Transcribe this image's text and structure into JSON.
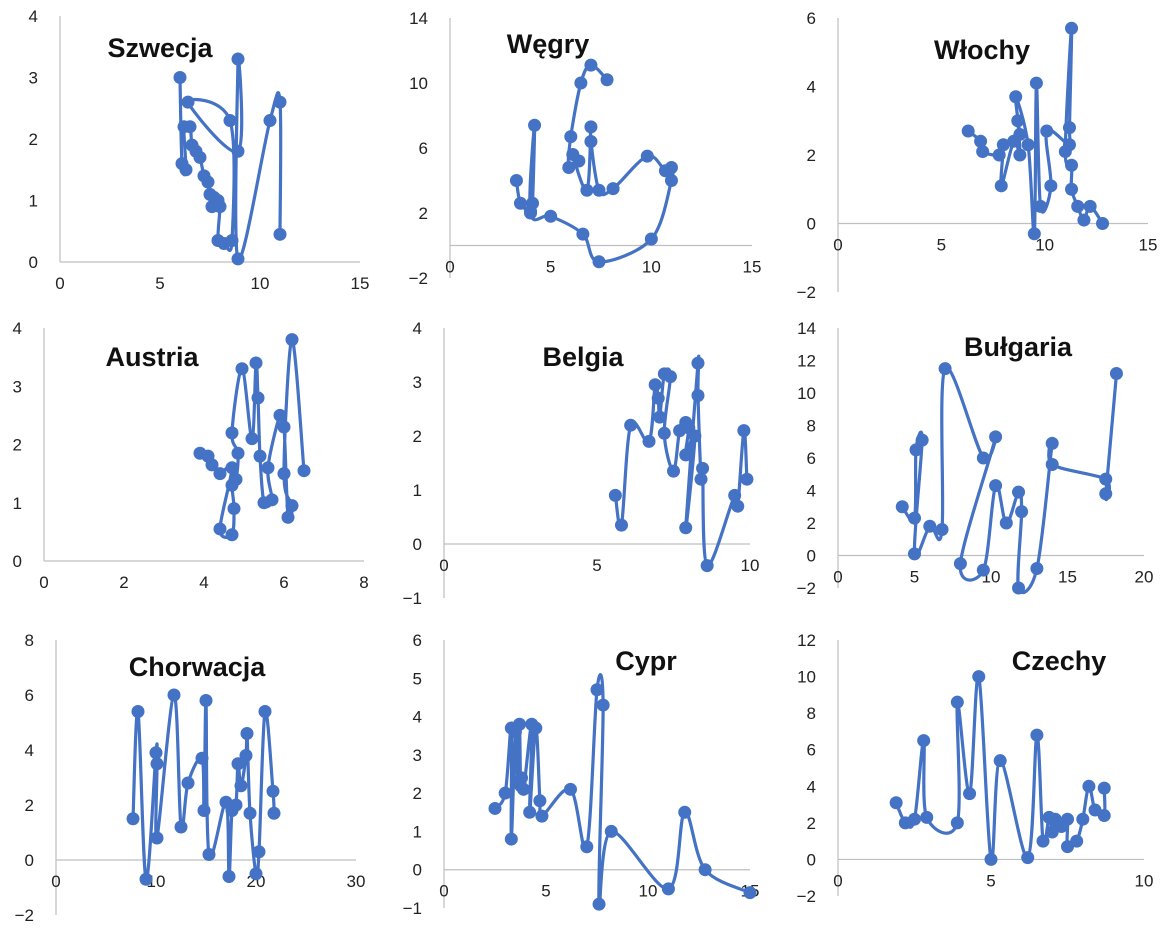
{
  "chart_data": [
    {
      "type": "scatter",
      "title": "Szwecja",
      "xlim": [
        0,
        15
      ],
      "ylim": [
        0,
        4
      ],
      "xticks": [
        0,
        5,
        10,
        15
      ],
      "yticks": [
        0,
        1,
        2,
        3,
        4
      ],
      "series_color": "#4472c4",
      "points": [
        [
          6.0,
          3.0
        ],
        [
          6.1,
          1.6
        ],
        [
          6.3,
          1.5
        ],
        [
          6.2,
          2.2
        ],
        [
          6.5,
          2.2
        ],
        [
          6.6,
          1.9
        ],
        [
          6.8,
          1.8
        ],
        [
          7.0,
          1.7
        ],
        [
          7.2,
          1.4
        ],
        [
          7.4,
          1.3
        ],
        [
          7.5,
          1.1
        ],
        [
          7.6,
          0.9
        ],
        [
          7.7,
          1.05
        ],
        [
          7.9,
          1.0
        ],
        [
          8.0,
          0.9
        ],
        [
          7.9,
          0.35
        ],
        [
          8.2,
          0.3
        ],
        [
          8.6,
          0.35
        ],
        [
          8.5,
          2.3
        ],
        [
          6.4,
          2.6
        ],
        [
          8.9,
          1.8
        ],
        [
          8.9,
          3.3
        ],
        [
          8.9,
          0.05
        ],
        [
          10.5,
          2.3
        ],
        [
          11.0,
          2.6
        ],
        [
          11.0,
          0.45
        ]
      ]
    },
    {
      "type": "scatter",
      "title": "Węgry",
      "xlim": [
        0,
        15
      ],
      "ylim": [
        -2,
        14
      ],
      "xticks": [
        0,
        5,
        10,
        15
      ],
      "yticks": [
        -2,
        2,
        6,
        10,
        14
      ],
      "series_color": "#4472c4",
      "points": [
        [
          3.3,
          4.0
        ],
        [
          3.5,
          2.6
        ],
        [
          4.0,
          2.1
        ],
        [
          4.1,
          2.6
        ],
        [
          4.2,
          7.4
        ],
        [
          4.0,
          2.0
        ],
        [
          5.0,
          1.8
        ],
        [
          6.6,
          0.7
        ],
        [
          7.4,
          -1.0
        ],
        [
          10.0,
          0.4
        ],
        [
          11.0,
          4.0
        ],
        [
          11.0,
          4.8
        ],
        [
          10.7,
          4.6
        ],
        [
          9.8,
          5.5
        ],
        [
          8.1,
          3.5
        ],
        [
          7.4,
          3.4
        ],
        [
          7.0,
          6.4
        ],
        [
          7.0,
          7.3
        ],
        [
          6.8,
          3.4
        ],
        [
          6.1,
          5.6
        ],
        [
          6.4,
          5.2
        ],
        [
          5.9,
          4.8
        ],
        [
          6.0,
          6.7
        ],
        [
          6.5,
          10.0
        ],
        [
          7.0,
          11.1
        ],
        [
          7.8,
          10.2
        ]
      ]
    },
    {
      "type": "scatter",
      "title": "Włochy",
      "xlim": [
        0,
        15
      ],
      "ylim": [
        -2,
        6
      ],
      "xticks": [
        0,
        5,
        10,
        15
      ],
      "yticks": [
        -2,
        0,
        2,
        4,
        6
      ],
      "series_color": "#4472c4",
      "points": [
        [
          6.3,
          2.7
        ],
        [
          6.9,
          2.4
        ],
        [
          7.0,
          2.1
        ],
        [
          7.8,
          2.0
        ],
        [
          8.0,
          2.3
        ],
        [
          7.9,
          1.1
        ],
        [
          8.5,
          2.4
        ],
        [
          8.8,
          2.0
        ],
        [
          8.7,
          3.0
        ],
        [
          8.8,
          2.6
        ],
        [
          8.6,
          3.7
        ],
        [
          9.2,
          2.3
        ],
        [
          9.5,
          -0.3
        ],
        [
          9.6,
          4.1
        ],
        [
          9.8,
          0.5
        ],
        [
          10.3,
          1.1
        ],
        [
          10.1,
          2.7
        ],
        [
          11.2,
          2.3
        ],
        [
          11.2,
          2.8
        ],
        [
          11.3,
          5.7
        ],
        [
          11.0,
          2.1
        ],
        [
          11.3,
          1.7
        ],
        [
          11.3,
          1.0
        ],
        [
          11.6,
          0.5
        ],
        [
          11.9,
          0.1
        ],
        [
          12.2,
          0.5
        ],
        [
          12.8,
          0.0
        ]
      ]
    },
    {
      "type": "scatter",
      "title": "Austria",
      "xlim": [
        0,
        8
      ],
      "ylim": [
        0,
        4
      ],
      "xticks": [
        0,
        2,
        4,
        6,
        8
      ],
      "yticks": [
        0,
        1,
        2,
        3,
        4
      ],
      "series_color": "#4472c4",
      "points": [
        [
          3.9,
          1.85
        ],
        [
          4.1,
          1.8
        ],
        [
          4.2,
          1.65
        ],
        [
          4.4,
          1.5
        ],
        [
          4.7,
          1.6
        ],
        [
          4.4,
          0.55
        ],
        [
          4.7,
          0.45
        ],
        [
          4.75,
          0.9
        ],
        [
          4.7,
          1.3
        ],
        [
          4.8,
          1.4
        ],
        [
          4.85,
          1.85
        ],
        [
          4.7,
          2.2
        ],
        [
          4.95,
          3.3
        ],
        [
          5.2,
          2.1
        ],
        [
          5.3,
          3.4
        ],
        [
          5.35,
          2.8
        ],
        [
          5.4,
          1.8
        ],
        [
          5.5,
          1.0
        ],
        [
          5.7,
          1.05
        ],
        [
          5.6,
          1.6
        ],
        [
          5.9,
          2.5
        ],
        [
          6.0,
          2.3
        ],
        [
          6.1,
          0.75
        ],
        [
          6.2,
          0.95
        ],
        [
          6.0,
          1.5
        ],
        [
          6.2,
          3.8
        ],
        [
          6.5,
          1.55
        ]
      ]
    },
    {
      "type": "scatter",
      "title": "Belgia",
      "xlim": [
        0,
        10
      ],
      "ylim": [
        -1,
        4
      ],
      "xticks": [
        0,
        5,
        10
      ],
      "yticks": [
        -1,
        0,
        1,
        2,
        3,
        4
      ],
      "series_color": "#4472c4",
      "points": [
        [
          5.6,
          0.9
        ],
        [
          5.8,
          0.35
        ],
        [
          6.1,
          2.2
        ],
        [
          6.7,
          1.9
        ],
        [
          6.9,
          2.95
        ],
        [
          7.0,
          2.7
        ],
        [
          7.05,
          2.35
        ],
        [
          7.2,
          3.15
        ],
        [
          7.4,
          3.1
        ],
        [
          7.2,
          2.05
        ],
        [
          7.5,
          1.35
        ],
        [
          7.7,
          2.1
        ],
        [
          7.9,
          2.25
        ],
        [
          8.0,
          2.15
        ],
        [
          7.9,
          1.65
        ],
        [
          8.2,
          2.0
        ],
        [
          7.9,
          0.3
        ],
        [
          8.3,
          3.35
        ],
        [
          8.3,
          2.75
        ],
        [
          8.4,
          1.2
        ],
        [
          8.45,
          1.4
        ],
        [
          8.6,
          -0.4
        ],
        [
          9.5,
          0.9
        ],
        [
          9.6,
          0.7
        ],
        [
          9.8,
          2.1
        ],
        [
          9.9,
          1.2
        ]
      ]
    },
    {
      "type": "scatter",
      "title": "Bułgaria",
      "xlim": [
        0,
        20
      ],
      "ylim": [
        -2,
        14
      ],
      "xticks": [
        0,
        5,
        10,
        15,
        20
      ],
      "yticks": [
        -2,
        0,
        2,
        4,
        6,
        8,
        10,
        12,
        14
      ],
      "series_color": "#4472c4",
      "points": [
        [
          4.2,
          3.0
        ],
        [
          5.0,
          2.3
        ],
        [
          5.1,
          6.5
        ],
        [
          5.5,
          7.1
        ],
        [
          5.0,
          0.1
        ],
        [
          6.0,
          1.8
        ],
        [
          6.8,
          1.6
        ],
        [
          7.0,
          11.5
        ],
        [
          9.5,
          6.0
        ],
        [
          10.3,
          7.3
        ],
        [
          8.0,
          -0.5
        ],
        [
          9.5,
          -0.9
        ],
        [
          10.3,
          4.3
        ],
        [
          11.0,
          2.0
        ],
        [
          11.8,
          3.9
        ],
        [
          12.0,
          2.7
        ],
        [
          11.8,
          -2.0
        ],
        [
          13.0,
          -0.8
        ],
        [
          14.0,
          6.9
        ],
        [
          14.0,
          5.6
        ],
        [
          17.5,
          4.7
        ],
        [
          17.5,
          3.8
        ],
        [
          18.2,
          11.2
        ]
      ]
    },
    {
      "type": "scatter",
      "title": "Chorwacja",
      "xlim": [
        0,
        30
      ],
      "ylim": [
        -2,
        8
      ],
      "xticks": [
        0,
        10,
        20,
        30
      ],
      "yticks": [
        -2,
        0,
        2,
        4,
        6,
        8
      ],
      "series_color": "#4472c4",
      "points": [
        [
          7.7,
          1.5
        ],
        [
          8.2,
          5.4
        ],
        [
          9.0,
          -0.7
        ],
        [
          10.0,
          3.9
        ],
        [
          10.1,
          3.5
        ],
        [
          10.1,
          0.8
        ],
        [
          11.8,
          6.0
        ],
        [
          12.5,
          1.2
        ],
        [
          13.2,
          2.8
        ],
        [
          14.6,
          3.7
        ],
        [
          14.8,
          1.8
        ],
        [
          15.0,
          5.8
        ],
        [
          15.3,
          0.2
        ],
        [
          17.0,
          2.1
        ],
        [
          17.3,
          -0.6
        ],
        [
          17.6,
          1.8
        ],
        [
          18.0,
          2.0
        ],
        [
          18.2,
          3.5
        ],
        [
          18.5,
          2.7
        ],
        [
          19.0,
          3.8
        ],
        [
          19.1,
          4.6
        ],
        [
          19.4,
          1.7
        ],
        [
          20.0,
          -0.5
        ],
        [
          20.3,
          0.3
        ],
        [
          20.9,
          5.4
        ],
        [
          21.7,
          2.5
        ],
        [
          21.8,
          1.7
        ]
      ]
    },
    {
      "type": "scatter",
      "title": "Cypr",
      "xlim": [
        0,
        15
      ],
      "ylim": [
        -1,
        6
      ],
      "xticks": [
        0,
        5,
        10,
        15
      ],
      "yticks": [
        -1,
        0,
        1,
        2,
        3,
        4,
        5,
        6
      ],
      "series_color": "#4472c4",
      "points": [
        [
          2.5,
          1.6
        ],
        [
          3.0,
          2.0
        ],
        [
          3.3,
          3.7
        ],
        [
          3.3,
          0.8
        ],
        [
          3.5,
          3.6
        ],
        [
          3.6,
          2.3
        ],
        [
          3.7,
          3.8
        ],
        [
          3.75,
          2.2
        ],
        [
          3.8,
          2.4
        ],
        [
          3.9,
          2.1
        ],
        [
          4.3,
          3.8
        ],
        [
          4.2,
          1.5
        ],
        [
          4.5,
          3.7
        ],
        [
          4.7,
          1.8
        ],
        [
          4.8,
          1.4
        ],
        [
          6.2,
          2.1
        ],
        [
          7.0,
          0.6
        ],
        [
          7.5,
          4.7
        ],
        [
          7.8,
          4.3
        ],
        [
          7.6,
          -0.9
        ],
        [
          8.2,
          1.0
        ],
        [
          11.0,
          -0.5
        ],
        [
          11.8,
          1.5
        ],
        [
          12.8,
          0.0
        ],
        [
          15.0,
          -0.6
        ]
      ]
    },
    {
      "type": "scatter",
      "title": "Czechy",
      "xlim": [
        0,
        10
      ],
      "ylim": [
        -2,
        12
      ],
      "xticks": [
        0,
        5,
        10
      ],
      "yticks": [
        -2,
        0,
        2,
        4,
        6,
        8,
        10,
        12
      ],
      "series_color": "#4472c4",
      "points": [
        [
          1.9,
          3.1
        ],
        [
          2.2,
          2.0
        ],
        [
          2.5,
          2.2
        ],
        [
          2.8,
          6.5
        ],
        [
          2.9,
          2.3
        ],
        [
          3.9,
          2.0
        ],
        [
          3.9,
          8.6
        ],
        [
          4.3,
          3.6
        ],
        [
          4.6,
          10.0
        ],
        [
          5.0,
          0.0
        ],
        [
          5.3,
          5.4
        ],
        [
          6.2,
          0.1
        ],
        [
          6.5,
          6.8
        ],
        [
          6.7,
          1.0
        ],
        [
          6.9,
          2.3
        ],
        [
          7.0,
          1.5
        ],
        [
          7.1,
          2.2
        ],
        [
          7.3,
          1.8
        ],
        [
          7.5,
          2.2
        ],
        [
          7.5,
          0.7
        ],
        [
          7.8,
          1.0
        ],
        [
          8.0,
          2.2
        ],
        [
          8.2,
          4.0
        ],
        [
          8.4,
          2.7
        ],
        [
          8.7,
          2.4
        ],
        [
          8.7,
          3.9
        ]
      ]
    }
  ]
}
